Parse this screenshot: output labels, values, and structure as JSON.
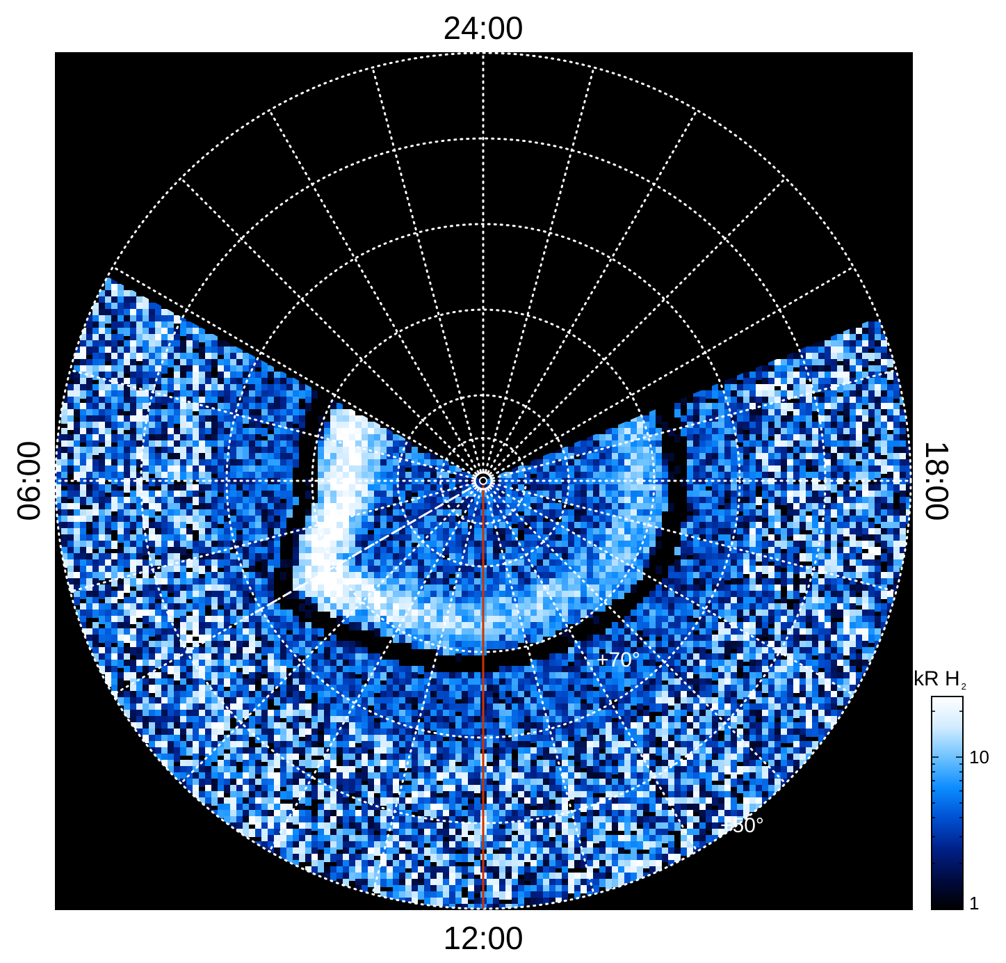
{
  "chart_data": {
    "type": "heatmap",
    "projection": "polar",
    "background_color": "#000000",
    "grid_color": "#ffffff",
    "grid": true,
    "local_time_labels": {
      "top": "24:00",
      "bottom": "12:00",
      "left": "06:00",
      "right": "18:00"
    },
    "latitude_labels": [
      {
        "text": "+70°",
        "latitude": 70
      },
      {
        "text": "+50°",
        "latitude": 50
      }
    ],
    "latitude_circles": [
      85,
      80,
      70,
      60,
      50,
      40
    ],
    "meridian_step_hours": 1,
    "coverage_boundary_local_time_hours": {
      "from": 4.1,
      "to": 19.5
    },
    "auroral_oval": [
      {
        "local_time": 6.4,
        "latitude": 74,
        "intensity_kR": 20
      },
      {
        "local_time": 7.2,
        "latitude": 71,
        "intensity_kR": 30
      },
      {
        "local_time": 8.0,
        "latitude": 68,
        "intensity_kR": 25
      },
      {
        "local_time": 9.5,
        "latitude": 72,
        "intensity_kR": 12
      },
      {
        "local_time": 11.0,
        "latitude": 73,
        "intensity_kR": 8
      },
      {
        "local_time": 12.5,
        "latitude": 74,
        "intensity_kR": 7
      },
      {
        "local_time": 14.0,
        "latitude": 74,
        "intensity_kR": 7
      },
      {
        "local_time": 16.0,
        "latitude": 72,
        "intensity_kR": 6
      }
    ],
    "noon_meridian_line": {
      "local_time": 12,
      "color": "#cc3300"
    },
    "dashed_line_local_time": 8.0,
    "colorbar": {
      "title": "kR H",
      "title_subscript": "2",
      "scale": "log",
      "range": [
        1,
        25
      ],
      "ticks": [
        {
          "value": 1,
          "label": "1"
        },
        {
          "value": 10,
          "label": "10"
        }
      ],
      "colors": [
        "#000000",
        "#000b40",
        "#00218a",
        "#0050d2",
        "#0c8cff",
        "#6ec2ff",
        "#d2ecff",
        "#ffffff"
      ]
    }
  }
}
